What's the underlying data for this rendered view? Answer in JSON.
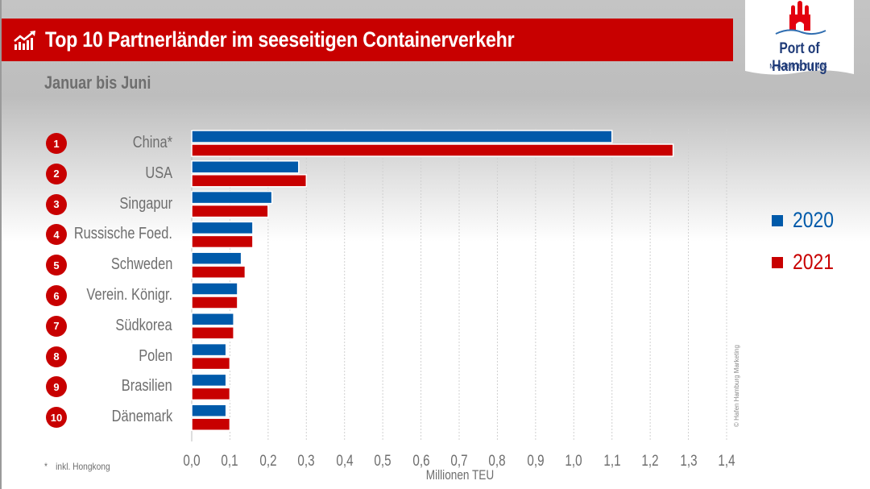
{
  "header": {
    "title": "Top 10 Partnerländer im seeseitigen Containerverkehr",
    "subtitle": "Januar bis Juni",
    "title_icon": "chart-growth-icon"
  },
  "logo": {
    "name": "Port of Hamburg",
    "sub": "MARKETING",
    "icon": "hamburg-castle-icon"
  },
  "footnote": {
    "mark": "*",
    "text": "inkl. Hongkong"
  },
  "copyright": "© Hafen Hamburg Marketing",
  "colors": {
    "series_2020": "#005aaa",
    "series_2021": "#c80000",
    "title_bar": "#c80000",
    "label_gray": "#6e6e6e"
  },
  "chart_data": {
    "type": "bar",
    "orientation": "horizontal",
    "title": "Top 10 Partnerländer im seeseitigen Containerverkehr",
    "subtitle": "Januar bis Juni",
    "xlabel": "Millionen TEU",
    "ylabel": "",
    "xlim": [
      0,
      1.4
    ],
    "xticks": [
      "0,0",
      "0,1",
      "0,2",
      "0,3",
      "0,4",
      "0,5",
      "0,6",
      "0,7",
      "0,8",
      "0,9",
      "1,0",
      "1,1",
      "1,2",
      "1,3",
      "1,4"
    ],
    "grid": true,
    "legend": "right",
    "ranks": [
      "1",
      "2",
      "3",
      "4",
      "5",
      "6",
      "7",
      "8",
      "9",
      "10"
    ],
    "categories": [
      "China*",
      "USA",
      "Singapur",
      "Russische Foed.",
      "Schweden",
      "Verein. Königr.",
      "Südkorea",
      "Polen",
      "Brasilien",
      "Dänemark"
    ],
    "series": [
      {
        "name": "2020",
        "color": "#005aaa",
        "values": [
          1.1,
          0.28,
          0.21,
          0.16,
          0.13,
          0.12,
          0.11,
          0.09,
          0.09,
          0.09
        ]
      },
      {
        "name": "2021",
        "color": "#c80000",
        "values": [
          1.26,
          0.3,
          0.2,
          0.16,
          0.14,
          0.12,
          0.11,
          0.1,
          0.1,
          0.1
        ]
      }
    ]
  }
}
